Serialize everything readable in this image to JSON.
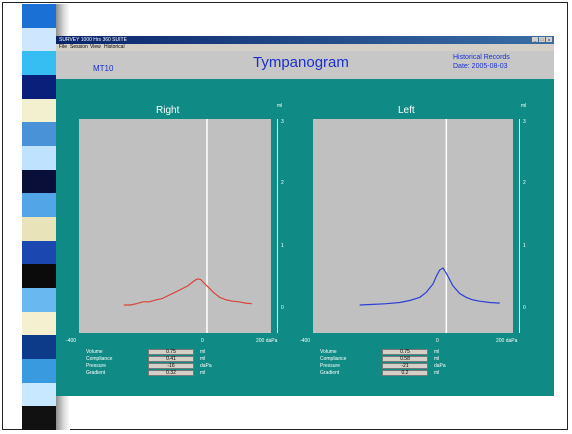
{
  "colors": {
    "window_bg": "#0f8a85",
    "plot_bg": "#c0c0c0",
    "title_blue": "#1a2fd0",
    "right_curve": "#d9433a",
    "left_curve": "#2b3fd6",
    "deco_stripes": [
      "#1b70d6",
      "#cfe6ff",
      "#36bdf2",
      "#0a1f7a",
      "#f3f0cf",
      "#4a92d8",
      "#bfe3ff",
      "#0a0f3a",
      "#52a6e8",
      "#e8e3b8",
      "#1a47b0",
      "#0b0b0b",
      "#6ab8f0",
      "#f4f0d0",
      "#0e3a8a",
      "#3a9ae0",
      "#c8e8ff",
      "#111111"
    ]
  },
  "window": {
    "title": "SURVEY 1000 Hrs 360 SUITE",
    "buttons": [
      "_",
      "□",
      "x"
    ]
  },
  "menu": {
    "items": [
      "File",
      "Session",
      "View",
      "Historical"
    ]
  },
  "header": {
    "patient_id": "MT10",
    "title": "Tympanogram",
    "historical_label": "Historical Records",
    "date": "Date: 2005-08-03"
  },
  "panels": {
    "right": {
      "title": "Right",
      "unit": "ml",
      "y_ticks": [
        "3",
        "2",
        "1",
        "0"
      ],
      "x_ticks": [
        "-400",
        "0",
        "200 daPa"
      ],
      "readouts": [
        {
          "label": "Volume",
          "value": "0.75",
          "unit": "ml"
        },
        {
          "label": "Compliance",
          "value": "0.41",
          "unit": "ml"
        },
        {
          "label": "Pressure",
          "value": "-16",
          "unit": "daPa"
        },
        {
          "label": "Gradient",
          "value": "0.32",
          "unit": "ml"
        }
      ]
    },
    "left": {
      "title": "Left",
      "unit": "ml",
      "y_ticks": [
        "3",
        "2",
        "1",
        "0"
      ],
      "x_ticks": [
        "-400",
        "0",
        "200 daPa"
      ],
      "readouts": [
        {
          "label": "Volume",
          "value": "0.75",
          "unit": "ml"
        },
        {
          "label": "Compliance",
          "value": "0.58",
          "unit": "ml"
        },
        {
          "label": "Pressure",
          "value": "-21",
          "unit": "daPa"
        },
        {
          "label": "Gradient",
          "value": "0.2",
          "unit": "ml"
        }
      ]
    }
  },
  "chart_data": [
    {
      "type": "line",
      "title": "Right",
      "xlabel": "daPa",
      "ylabel": "ml",
      "xlim": [
        -400,
        200
      ],
      "ylim": [
        0,
        3
      ],
      "series": [
        {
          "name": "Right",
          "x": [
            -260,
            -240,
            -220,
            -200,
            -180,
            -160,
            -140,
            -120,
            -100,
            -80,
            -60,
            -40,
            -30,
            -20,
            0,
            20,
            40,
            60,
            80,
            100,
            120,
            140
          ],
          "y": [
            0.0,
            0.0,
            0.02,
            0.05,
            0.05,
            0.08,
            0.1,
            0.15,
            0.2,
            0.25,
            0.3,
            0.38,
            0.41,
            0.4,
            0.3,
            0.2,
            0.12,
            0.08,
            0.06,
            0.05,
            0.03,
            0.02
          ]
        }
      ]
    },
    {
      "type": "line",
      "title": "Left",
      "xlabel": "daPa",
      "ylabel": "ml",
      "xlim": [
        -400,
        200
      ],
      "ylim": [
        0,
        3
      ],
      "series": [
        {
          "name": "Left",
          "x": [
            -260,
            -220,
            -180,
            -140,
            -110,
            -80,
            -60,
            -40,
            -30,
            -20,
            -10,
            0,
            20,
            40,
            60,
            80,
            100,
            130,
            160
          ],
          "y": [
            0.0,
            0.01,
            0.02,
            0.04,
            0.07,
            0.12,
            0.2,
            0.33,
            0.45,
            0.55,
            0.58,
            0.5,
            0.3,
            0.18,
            0.12,
            0.08,
            0.06,
            0.04,
            0.03
          ]
        }
      ]
    }
  ]
}
